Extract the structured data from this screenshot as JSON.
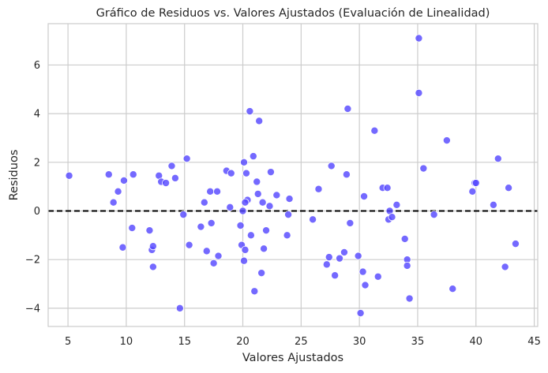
{
  "chart_data": {
    "type": "scatter",
    "title": "Gráfico de Residuos vs. Valores Ajustados (Evaluación de Linealidad)",
    "xlabel": "Valores Ajustados",
    "ylabel": "Residuos",
    "xlim": [
      3.3,
      45.3
    ],
    "ylim": [
      -4.75,
      7.7
    ],
    "xticks": [
      5,
      10,
      15,
      20,
      25,
      30,
      35,
      40,
      45
    ],
    "yticks": [
      -4,
      -2,
      0,
      2,
      4,
      6
    ],
    "grid": true,
    "reference_line": {
      "y": 0,
      "style": "dashed",
      "color": "#000000"
    },
    "point_color": "#5548ff",
    "grid_color": "#cccccc",
    "points": [
      {
        "x": 5.1,
        "y": 1.45
      },
      {
        "x": 8.5,
        "y": 1.5
      },
      {
        "x": 8.9,
        "y": 0.35
      },
      {
        "x": 9.3,
        "y": 0.8
      },
      {
        "x": 9.7,
        "y": -1.5
      },
      {
        "x": 9.8,
        "y": 1.25
      },
      {
        "x": 10.5,
        "y": -0.7
      },
      {
        "x": 10.6,
        "y": 1.5
      },
      {
        "x": 12.0,
        "y": -0.8
      },
      {
        "x": 12.2,
        "y": -1.6
      },
      {
        "x": 12.3,
        "y": -2.3
      },
      {
        "x": 12.3,
        "y": -1.45
      },
      {
        "x": 12.8,
        "y": 1.45
      },
      {
        "x": 13.0,
        "y": 1.2
      },
      {
        "x": 13.4,
        "y": 1.15
      },
      {
        "x": 13.9,
        "y": 1.85
      },
      {
        "x": 14.2,
        "y": 1.35
      },
      {
        "x": 14.6,
        "y": -4.0
      },
      {
        "x": 14.9,
        "y": -0.15
      },
      {
        "x": 15.2,
        "y": 2.15
      },
      {
        "x": 15.4,
        "y": -1.4
      },
      {
        "x": 16.4,
        "y": -0.65
      },
      {
        "x": 16.7,
        "y": 0.35
      },
      {
        "x": 16.9,
        "y": -1.65
      },
      {
        "x": 17.2,
        "y": 0.8
      },
      {
        "x": 17.3,
        "y": -0.5
      },
      {
        "x": 17.5,
        "y": -2.15
      },
      {
        "x": 17.8,
        "y": 0.8
      },
      {
        "x": 17.9,
        "y": -1.85
      },
      {
        "x": 18.6,
        "y": 1.65
      },
      {
        "x": 18.9,
        "y": 0.15
      },
      {
        "x": 19.0,
        "y": 1.55
      },
      {
        "x": 19.8,
        "y": -0.6
      },
      {
        "x": 19.9,
        "y": -1.4
      },
      {
        "x": 20.0,
        "y": 0.0
      },
      {
        "x": 20.1,
        "y": 2.0
      },
      {
        "x": 20.1,
        "y": -2.05
      },
      {
        "x": 20.2,
        "y": -1.6
      },
      {
        "x": 20.3,
        "y": 1.55
      },
      {
        "x": 20.4,
        "y": 0.45
      },
      {
        "x": 20.2,
        "y": 0.35
      },
      {
        "x": 20.6,
        "y": 4.1
      },
      {
        "x": 20.7,
        "y": -1.0
      },
      {
        "x": 20.9,
        "y": 2.25
      },
      {
        "x": 21.0,
        "y": -3.3
      },
      {
        "x": 21.2,
        "y": 1.2
      },
      {
        "x": 21.3,
        "y": 0.7
      },
      {
        "x": 21.4,
        "y": 3.7
      },
      {
        "x": 21.6,
        "y": -2.55
      },
      {
        "x": 21.7,
        "y": 0.35
      },
      {
        "x": 21.8,
        "y": -1.55
      },
      {
        "x": 22.0,
        "y": -0.8
      },
      {
        "x": 22.3,
        "y": 0.2
      },
      {
        "x": 22.4,
        "y": 1.6
      },
      {
        "x": 22.9,
        "y": 0.65
      },
      {
        "x": 23.8,
        "y": -1.0
      },
      {
        "x": 23.9,
        "y": -0.15
      },
      {
        "x": 24.0,
        "y": 0.5
      },
      {
        "x": 26.0,
        "y": -0.35
      },
      {
        "x": 26.5,
        "y": 0.9
      },
      {
        "x": 27.2,
        "y": -2.2
      },
      {
        "x": 27.4,
        "y": -1.9
      },
      {
        "x": 27.6,
        "y": 1.85
      },
      {
        "x": 27.9,
        "y": -2.65
      },
      {
        "x": 28.3,
        "y": -1.95
      },
      {
        "x": 28.7,
        "y": -1.7
      },
      {
        "x": 28.9,
        "y": 1.5
      },
      {
        "x": 29.0,
        "y": 4.2
      },
      {
        "x": 29.2,
        "y": -0.5
      },
      {
        "x": 29.9,
        "y": -1.85
      },
      {
        "x": 30.1,
        "y": -4.2
      },
      {
        "x": 30.3,
        "y": -2.5
      },
      {
        "x": 30.4,
        "y": 0.6
      },
      {
        "x": 30.5,
        "y": -3.05
      },
      {
        "x": 31.3,
        "y": 3.3
      },
      {
        "x": 31.6,
        "y": -2.7
      },
      {
        "x": 32.0,
        "y": 0.95
      },
      {
        "x": 32.4,
        "y": 0.95
      },
      {
        "x": 32.5,
        "y": -0.35
      },
      {
        "x": 32.6,
        "y": 0.0
      },
      {
        "x": 32.8,
        "y": -0.25
      },
      {
        "x": 33.2,
        "y": 0.25
      },
      {
        "x": 33.9,
        "y": -1.15
      },
      {
        "x": 34.1,
        "y": -2.0
      },
      {
        "x": 34.1,
        "y": -2.25
      },
      {
        "x": 34.3,
        "y": -3.6
      },
      {
        "x": 35.1,
        "y": 7.1
      },
      {
        "x": 35.1,
        "y": 4.85
      },
      {
        "x": 35.5,
        "y": 1.75
      },
      {
        "x": 36.4,
        "y": -0.15
      },
      {
        "x": 37.5,
        "y": 2.9
      },
      {
        "x": 38.0,
        "y": -3.2
      },
      {
        "x": 39.7,
        "y": 0.8
      },
      {
        "x": 39.9,
        "y": 1.15
      },
      {
        "x": 40.0,
        "y": 1.15
      },
      {
        "x": 41.5,
        "y": 0.25
      },
      {
        "x": 41.9,
        "y": 2.15
      },
      {
        "x": 42.5,
        "y": -2.3
      },
      {
        "x": 42.8,
        "y": 0.95
      },
      {
        "x": 43.4,
        "y": -1.35
      }
    ]
  }
}
